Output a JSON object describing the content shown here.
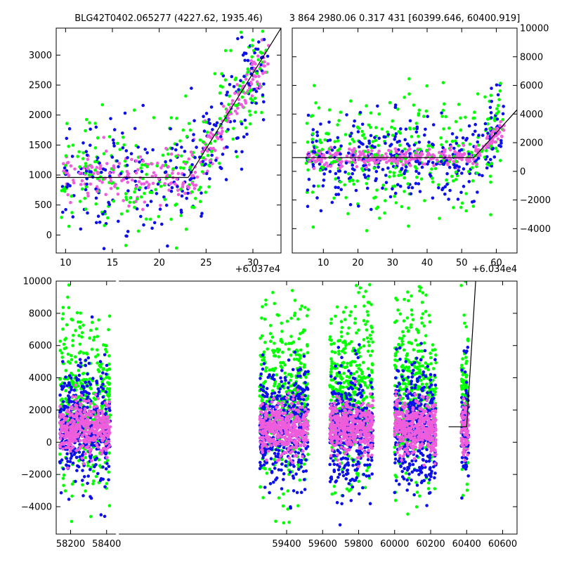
{
  "colors": {
    "green": "#00ff00",
    "blue": "#0b10e8",
    "magenta": "#ee5ddc",
    "model": "#000000"
  },
  "chart_data": [
    {
      "type": "scatter",
      "title": "BLG42T0402.065277 (4227.62, 1935.46)",
      "xlabel": "",
      "ylabel": "",
      "x_offset_label": "+6.037e4",
      "xlim": [
        9,
        33
      ],
      "ylim": [
        -300,
        3450
      ],
      "xticks": [
        10,
        15,
        20,
        25,
        30
      ],
      "yticks": [
        0,
        500,
        1000,
        1500,
        2000,
        2500,
        3000
      ],
      "y_axis_side": "left",
      "grid": false,
      "model": {
        "x": [
          9,
          23.1,
          33
        ],
        "y": [
          960,
          960,
          3450
        ]
      }
    },
    {
      "type": "scatter",
      "title": "3 864 2980.06 0.317 431 [60399.646, 60400.919]",
      "xlabel": "",
      "ylabel": "",
      "x_offset_label": "+6.034e4",
      "xlim": [
        1,
        66
      ],
      "ylim": [
        -5700,
        10000
      ],
      "xticks": [
        10,
        20,
        30,
        40,
        50,
        60
      ],
      "yticks": [
        -4000,
        -2000,
        0,
        2000,
        4000,
        6000,
        8000,
        10000
      ],
      "y_axis_side": "right",
      "grid": false,
      "model": {
        "x": [
          1,
          53.5,
          66
        ],
        "y": [
          960,
          960,
          4300
        ]
      }
    },
    {
      "type": "scatter",
      "title": "",
      "xlabel": "",
      "ylabel": "",
      "xlim": [
        58120,
        60680
      ],
      "ylim": [
        -5700,
        10000
      ],
      "xticks": [
        58200,
        58400,
        59400,
        59600,
        59800,
        60000,
        60200,
        60400,
        60600
      ],
      "yticks": [
        -4000,
        -2000,
        0,
        2000,
        4000,
        6000,
        8000,
        10000
      ],
      "y_axis_side": "left",
      "grid": false,
      "model": {
        "x": [
          60300,
          60398,
          60400,
          60450
        ],
        "y": [
          960,
          960,
          960,
          10000
        ]
      }
    }
  ]
}
